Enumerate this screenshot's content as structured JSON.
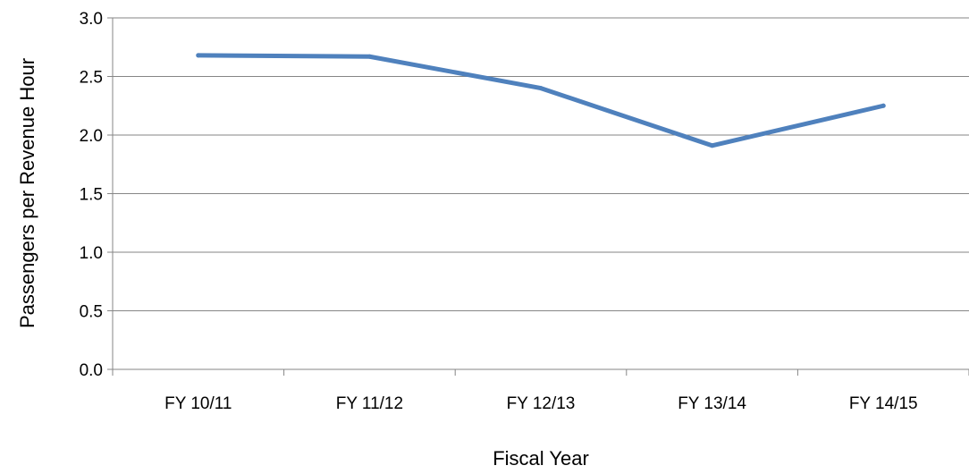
{
  "chart_data": {
    "type": "line",
    "categories": [
      "FY 10/11",
      "FY 11/12",
      "FY 12/13",
      "FY 13/14",
      "FY 14/15"
    ],
    "series": [
      {
        "values": [
          2.68,
          2.67,
          2.4,
          1.91,
          2.25
        ],
        "color": "#4F81BD"
      }
    ],
    "xlabel": "Fiscal Year",
    "ylabel": "Passengers per Revenue Hour",
    "ylim": [
      0,
      3.0
    ],
    "y_ticks": [
      "0.0",
      "0.5",
      "1.0",
      "1.5",
      "2.0",
      "2.5",
      "3.0"
    ],
    "grid": true,
    "gridline_color": "#868686",
    "axis_color": "#868686"
  }
}
